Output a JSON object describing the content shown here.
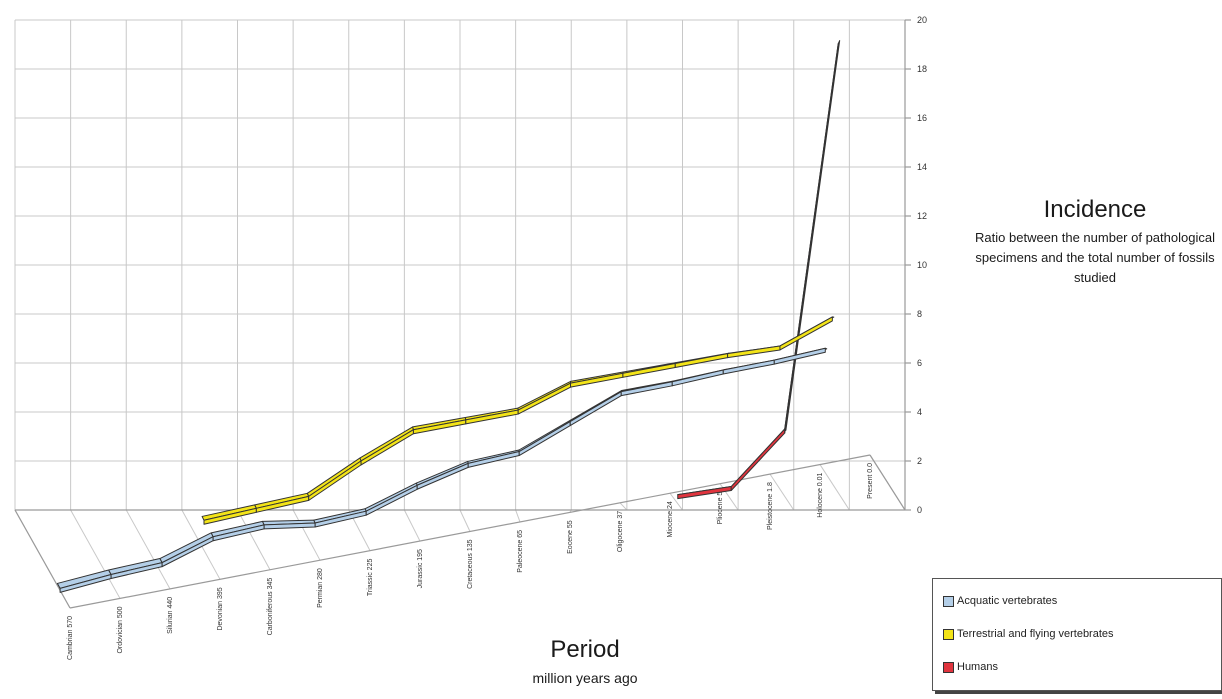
{
  "chart_data": {
    "type": "line",
    "style": "3d-ribbon",
    "ylim": [
      0,
      20
    ],
    "ytick_labels": [
      "0",
      "2",
      "4",
      "6",
      "8",
      "10",
      "12",
      "14",
      "16",
      "18",
      "20"
    ],
    "categories": [
      "Cambrian 570",
      "Ordovician 500",
      "Silurian 440",
      "Devonian 395",
      "Carboniferous 345",
      "Permian 280",
      "Triassic 225",
      "Jurassic 195",
      "Cretaceous 135",
      "Paleocene 65",
      "Eocene 55",
      "Oligocene 37",
      "Miocene 24",
      "Pliocene 5",
      "Pleistocene 1.8",
      "Holocene 0.01",
      "Present 0.0"
    ],
    "series": [
      {
        "name": "Acquatic vertebrates",
        "color": "#b4cfe8",
        "values": [
          0.1,
          0.4,
          0.6,
          1.5,
          1.7,
          1.4,
          1.6,
          2.5,
          3.2,
          3.4,
          4.5,
          5.6,
          5.7,
          5.9,
          6.0,
          6.2,
          null
        ]
      },
      {
        "name": "Terrestrial and flying vertebrates",
        "color": "#f3e418",
        "values": [
          null,
          null,
          null,
          1.4,
          1.7,
          2.0,
          3.4,
          4.6,
          4.8,
          5.0,
          6.0,
          6.2,
          6.4,
          6.6,
          6.7,
          7.8,
          null
        ]
      },
      {
        "name": "Humans",
        "color": "#e0343e",
        "values": [
          null,
          null,
          null,
          null,
          null,
          null,
          null,
          null,
          null,
          null,
          null,
          null,
          0.4,
          0.6,
          3.0,
          20.0,
          null
        ]
      }
    ],
    "ylabel": "Incidence",
    "ylabel_description": "Ratio between the number of pathological specimens and the total number of fossils studied",
    "xlabel": "Period",
    "xlabel_sub": "million years ago",
    "legend_position": "bottom-right",
    "grid": true
  }
}
